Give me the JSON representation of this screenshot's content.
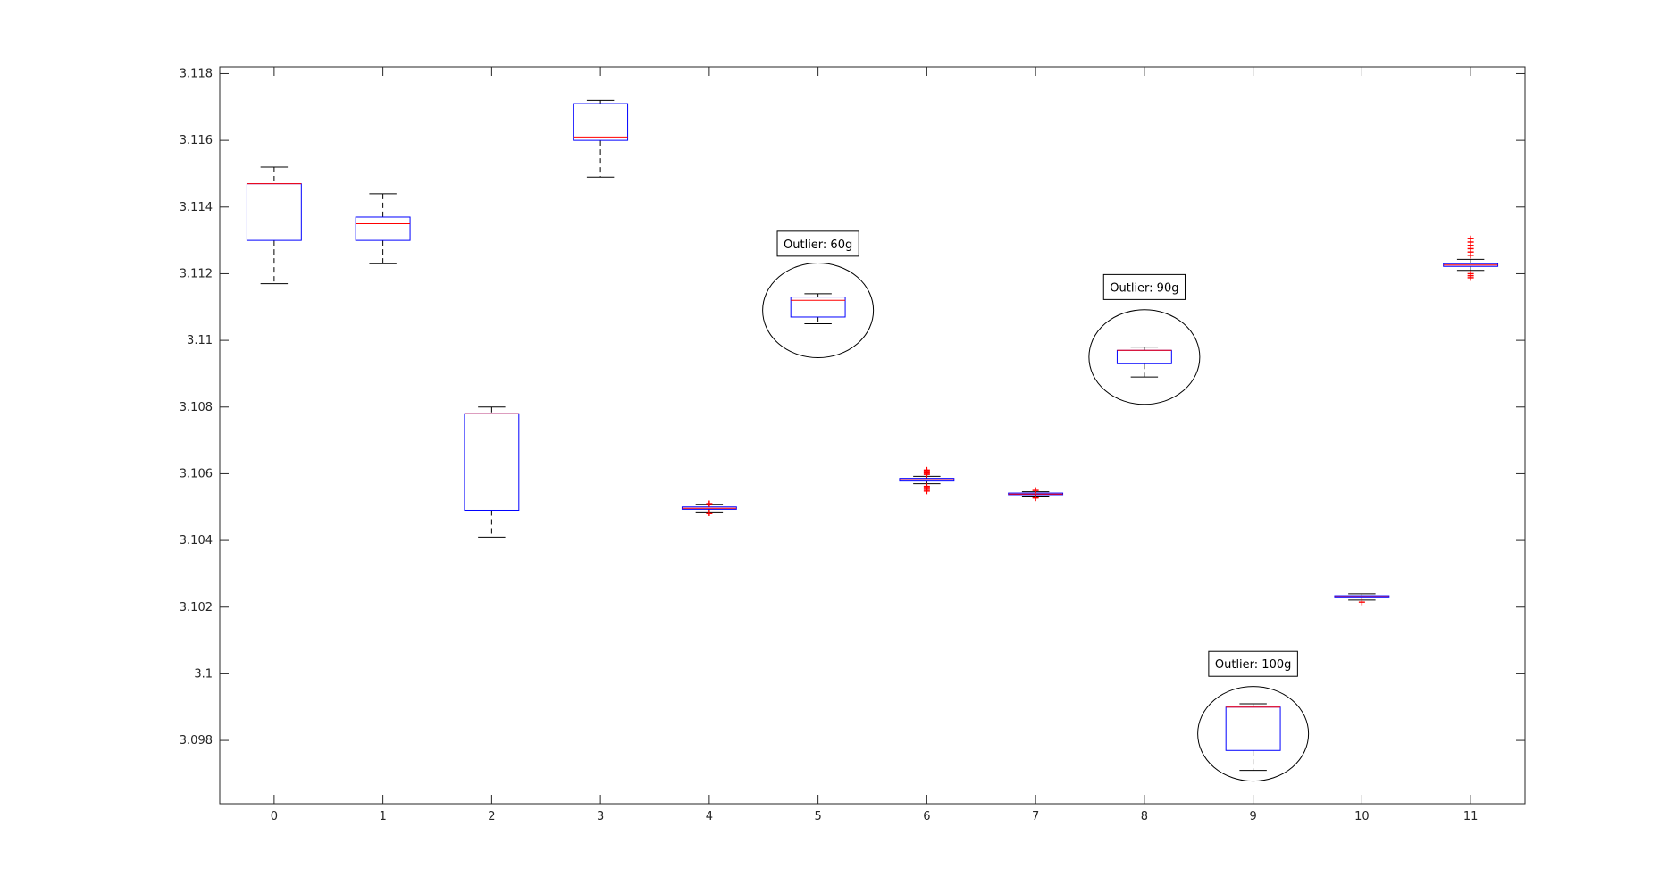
{
  "chart_data": {
    "type": "boxplot",
    "title": "",
    "xlabel": "",
    "ylabel": "",
    "categories": [
      "0",
      "1",
      "2",
      "3",
      "4",
      "5",
      "6",
      "7",
      "8",
      "9",
      "10",
      "11"
    ],
    "xlim": [
      -0.5,
      11.5
    ],
    "ylim": [
      3.0961,
      3.1182
    ],
    "y_ticks": [
      3.098,
      3.1,
      3.102,
      3.104,
      3.106,
      3.108,
      3.11,
      3.112,
      3.114,
      3.116,
      3.118
    ],
    "y_tick_labels": [
      "3.098",
      "3.1",
      "3.102",
      "3.104",
      "3.106",
      "3.108",
      "3.11",
      "3.112",
      "3.114",
      "3.116",
      "3.118"
    ],
    "grid": false,
    "boxes": [
      {
        "category": "0",
        "whisker_low": 3.1117,
        "q1": 3.113,
        "median": 3.1147,
        "q3": 3.1147,
        "whisker_high": 3.1152,
        "outliers": []
      },
      {
        "category": "1",
        "whisker_low": 3.1123,
        "q1": 3.113,
        "median": 3.1135,
        "q3": 3.1137,
        "whisker_high": 3.1144,
        "outliers": []
      },
      {
        "category": "2",
        "whisker_low": 3.1041,
        "q1": 3.1049,
        "median": 3.1078,
        "q3": 3.1078,
        "whisker_high": 3.108,
        "outliers": []
      },
      {
        "category": "3",
        "whisker_low": 3.1149,
        "q1": 3.116,
        "median": 3.1161,
        "q3": 3.1171,
        "whisker_high": 3.1172,
        "outliers": []
      },
      {
        "category": "4",
        "whisker_low": 3.10485,
        "q1": 3.10493,
        "median": 3.10496,
        "q3": 3.105,
        "whisker_high": 3.10508,
        "outliers": [
          3.10482,
          3.1051
        ]
      },
      {
        "category": "5",
        "whisker_low": 3.1105,
        "q1": 3.1107,
        "median": 3.1112,
        "q3": 3.1113,
        "whisker_high": 3.1114,
        "outliers": []
      },
      {
        "category": "6",
        "whisker_low": 3.1057,
        "q1": 3.10578,
        "median": 3.10582,
        "q3": 3.10586,
        "whisker_high": 3.10592,
        "outliers": [
          3.10548,
          3.10553,
          3.10558,
          3.10562,
          3.10598,
          3.10602,
          3.10607,
          3.10611
        ]
      },
      {
        "category": "7",
        "whisker_low": 3.10533,
        "q1": 3.10537,
        "median": 3.10539,
        "q3": 3.10542,
        "whisker_high": 3.10546,
        "outliers": [
          3.10527,
          3.1055
        ]
      },
      {
        "category": "8",
        "whisker_low": 3.1089,
        "q1": 3.1093,
        "median": 3.1097,
        "q3": 3.1097,
        "whisker_high": 3.1098,
        "outliers": []
      },
      {
        "category": "9",
        "whisker_low": 3.0971,
        "q1": 3.0977,
        "median": 3.099,
        "q3": 3.099,
        "whisker_high": 3.0991,
        "outliers": []
      },
      {
        "category": "10",
        "whisker_low": 3.10221,
        "q1": 3.10228,
        "median": 3.10231,
        "q3": 3.10234,
        "whisker_high": 3.1024,
        "outliers": [
          3.10215
        ]
      },
      {
        "category": "11",
        "whisker_low": 3.1121,
        "q1": 3.11222,
        "median": 3.11226,
        "q3": 3.1123,
        "whisker_high": 3.11243,
        "outliers": [
          3.11188,
          3.11194,
          3.112,
          3.11255,
          3.11265,
          3.11275,
          3.11285,
          3.11295,
          3.11305
        ]
      }
    ],
    "annotations": [
      {
        "text": "Outlier: 60g",
        "category": "5",
        "y": 3.1129,
        "circle_y": 3.1109
      },
      {
        "text": "Outlier: 90g",
        "category": "8",
        "y": 3.1116,
        "circle_y": 3.1095
      },
      {
        "text": "Outlier: 100g",
        "category": "9",
        "y": 3.1003,
        "circle_y": 3.0982
      }
    ],
    "colors": {
      "box": "#0000ff",
      "median": "#ff0000",
      "whisker": "#000000",
      "outlier": "#ff0000",
      "axes": "#262626",
      "annotation": "#000000"
    }
  }
}
